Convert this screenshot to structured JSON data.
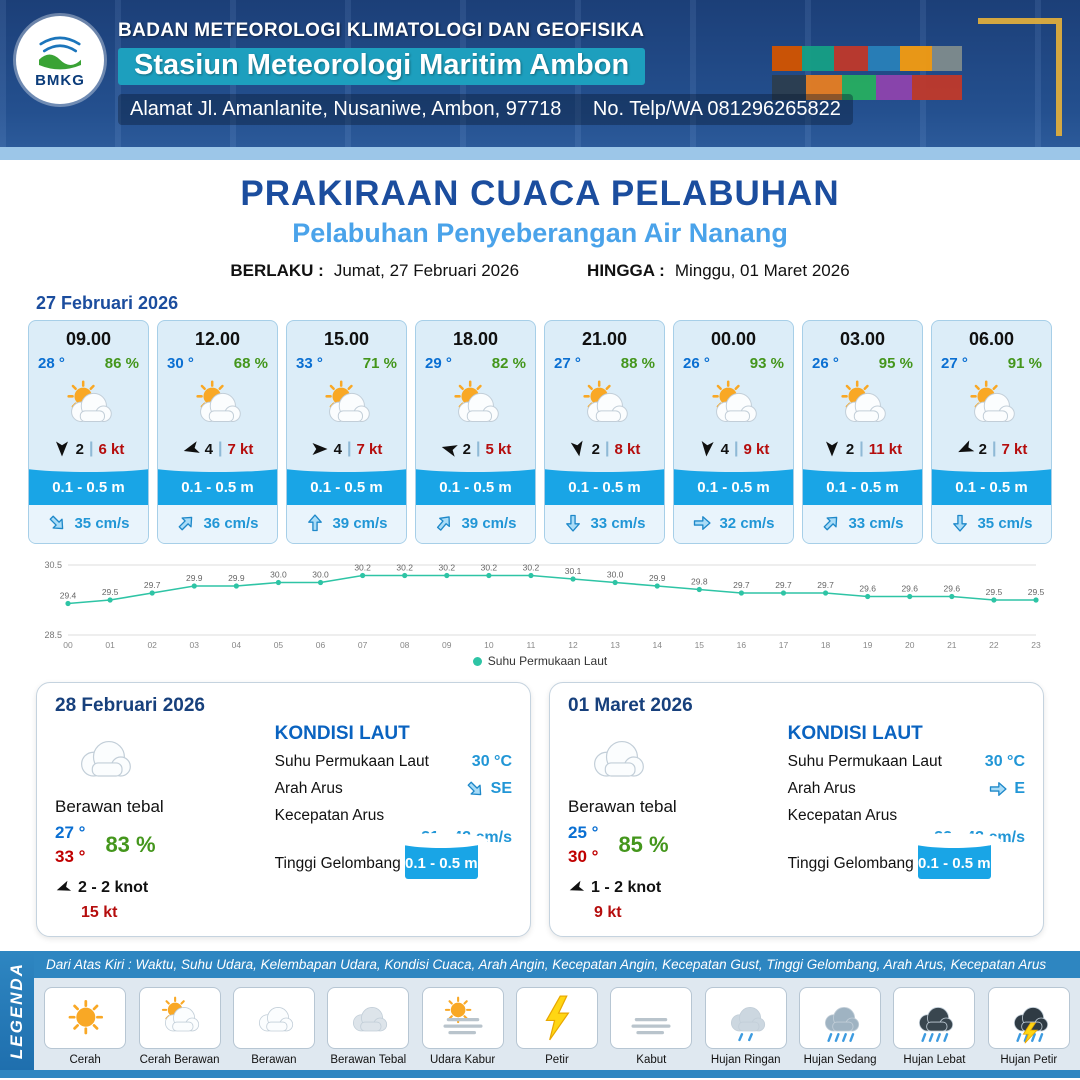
{
  "header": {
    "agency": "BADAN METEOROLOGI KLIMATOLOGI DAN GEOFISIKA",
    "station": "Stasiun Meteorologi Maritim Ambon",
    "address": "Alamat Jl. Amanlanite, Nusaniwe, Ambon, 97718",
    "contact": "No. Telp/WA  081296265822",
    "logo_text": "BMKG"
  },
  "title": {
    "main": "PRAKIRAAN CUACA PELABUHAN",
    "subtitle": "Pelabuhan Penyeberangan Air Nanang",
    "berlaku_label": "BERLAKU :",
    "berlaku_value": "Jumat, 27 Februari 2026",
    "hingga_label": "HINGGA :",
    "hingga_value": "Minggu, 01 Maret 2026"
  },
  "forecast_date": "27 Februari 2026",
  "ui": {
    "wind_separator": "|"
  },
  "colors": {
    "accent_blue": "#19a5e6",
    "navy": "#1b4d9e",
    "teal_line": "#2ec4a5",
    "humidity_green": "#44961c",
    "gust_red": "#b50d0d"
  },
  "forecast_cards": [
    {
      "time": "09.00",
      "temp": "28 °",
      "humidity": "86 %",
      "icon": "sun-cloud",
      "wind_dir_deg": 180,
      "wind_val": "2",
      "wind_speed": "6 kt",
      "wave": "0.1 - 0.5 m",
      "current_dir_deg": 45,
      "current": "35 cm/s"
    },
    {
      "time": "12.00",
      "temp": "30 °",
      "humidity": "68 %",
      "icon": "sun-cloud",
      "wind_dir_deg": 255,
      "wind_val": "4",
      "wind_speed": "7 kt",
      "wave": "0.1 - 0.5 m",
      "current_dir_deg": -45,
      "current": "36 cm/s"
    },
    {
      "time": "15.00",
      "temp": "33 °",
      "humidity": "71 %",
      "icon": "sun-cloud",
      "wind_dir_deg": 90,
      "wind_val": "4",
      "wind_speed": "7 kt",
      "wave": "0.1 - 0.5 m",
      "current_dir_deg": -90,
      "current": "39 cm/s"
    },
    {
      "time": "18.00",
      "temp": "29 °",
      "humidity": "82 %",
      "icon": "sun-cloud",
      "wind_dir_deg": 285,
      "wind_val": "2",
      "wind_speed": "5 kt",
      "wave": "0.1 - 0.5 m",
      "current_dir_deg": -50,
      "current": "39 cm/s"
    },
    {
      "time": "21.00",
      "temp": "27 °",
      "humidity": "88 %",
      "icon": "sun-cloud",
      "wind_dir_deg": 170,
      "wind_val": "2",
      "wind_speed": "8 kt",
      "wave": "0.1 - 0.5 m",
      "current_dir_deg": 90,
      "current": "33 cm/s"
    },
    {
      "time": "00.00",
      "temp": "26 °",
      "humidity": "93 %",
      "icon": "sun-cloud",
      "wind_dir_deg": 185,
      "wind_val": "4",
      "wind_speed": "9 kt",
      "wave": "0.1 - 0.5 m",
      "current_dir_deg": 0,
      "current": "32 cm/s"
    },
    {
      "time": "03.00",
      "temp": "26 °",
      "humidity": "95 %",
      "icon": "sun-cloud",
      "wind_dir_deg": 180,
      "wind_val": "2",
      "wind_speed": "11 kt",
      "wave": "0.1 - 0.5 m",
      "current_dir_deg": -45,
      "current": "33 cm/s"
    },
    {
      "time": "06.00",
      "temp": "27 °",
      "humidity": "91 %",
      "icon": "sun-cloud",
      "wind_dir_deg": 245,
      "wind_val": "2",
      "wind_speed": "7 kt",
      "wave": "0.1 - 0.5 m",
      "current_dir_deg": 90,
      "current": "35 cm/s"
    }
  ],
  "chart_data": {
    "type": "line",
    "title": "",
    "legend": "Suhu Permukaan Laut",
    "x": [
      "00",
      "01",
      "02",
      "03",
      "04",
      "05",
      "06",
      "07",
      "08",
      "09",
      "10",
      "11",
      "12",
      "13",
      "14",
      "15",
      "16",
      "17",
      "18",
      "19",
      "20",
      "21",
      "22",
      "23"
    ],
    "values": [
      29.4,
      29.5,
      29.7,
      29.9,
      29.9,
      30.0,
      30.0,
      30.2,
      30.2,
      30.2,
      30.2,
      30.2,
      30.1,
      30.0,
      29.9,
      29.8,
      29.7,
      29.7,
      29.7,
      29.6,
      29.6,
      29.6,
      29.5,
      29.5
    ],
    "ylim": [
      28.5,
      30.5
    ],
    "line_color": "#2ec4a5",
    "grid": true,
    "legend_position": "bottom"
  },
  "daily": [
    {
      "date": "28 Februari 2026",
      "icon": "cloud",
      "condition": "Berawan tebal",
      "temp_min": "27 °",
      "temp_max": "33 °",
      "humidity": "83 %",
      "wind_dir_deg": 250,
      "wind": "2  - 2 knot",
      "gust": "15 kt",
      "sea": {
        "title": "KONDISI LAUT",
        "sst_label": "Suhu Permukaan Laut",
        "sst_value": "30 °C",
        "current_dir_label": "Arah Arus",
        "current_dir": "SE",
        "current_dir_deg": 45,
        "current_speed_label": "Kecepatan Arus",
        "current_speed": "31 - 42 cm/s",
        "wave_label": "Tinggi Gelombang",
        "wave": "0.1 - 0.5 m"
      }
    },
    {
      "date": "01 Maret 2026",
      "icon": "cloud",
      "condition": "Berawan tebal",
      "temp_min": "25 °",
      "temp_max": "30 °",
      "humidity": "85 %",
      "wind_dir_deg": 250,
      "wind": "1  - 2 knot",
      "gust": "9 kt",
      "sea": {
        "title": "KONDISI LAUT",
        "sst_label": "Suhu Permukaan Laut",
        "sst_value": "30 °C",
        "current_dir_label": "Arah Arus",
        "current_dir": "E",
        "current_dir_deg": 0,
        "current_speed_label": "Kecepatan Arus",
        "current_speed": "32 - 43 cm/s",
        "wave_label": "Tinggi Gelombang",
        "wave": "0.1 - 0.5 m"
      }
    }
  ],
  "legend": {
    "title": "LEGENDA",
    "description": "Dari Atas Kiri : Waktu, Suhu Udara, Kelembapan Udara, Kondisi Cuaca, Arah Angin, Kecepatan Angin, Kecepatan Gust, Tinggi Gelombang, Arah Arus, Kecepatan Arus",
    "items": [
      {
        "label": "Cerah",
        "icon": "sun"
      },
      {
        "label": "Cerah Berawan",
        "icon": "sun-cloud"
      },
      {
        "label": "Berawan",
        "icon": "cloud"
      },
      {
        "label": "Berawan Tebal",
        "icon": "cloud-thick"
      },
      {
        "label": "Udara Kabur",
        "icon": "haze"
      },
      {
        "label": "Petir",
        "icon": "lightning"
      },
      {
        "label": "Kabut",
        "icon": "fog"
      },
      {
        "label": "Hujan Ringan",
        "icon": "rain-light"
      },
      {
        "label": "Hujan Sedang",
        "icon": "rain-medium"
      },
      {
        "label": "Hujan Lebat",
        "icon": "rain-heavy"
      },
      {
        "label": "Hujan Petir",
        "icon": "rain-thunder"
      }
    ]
  }
}
